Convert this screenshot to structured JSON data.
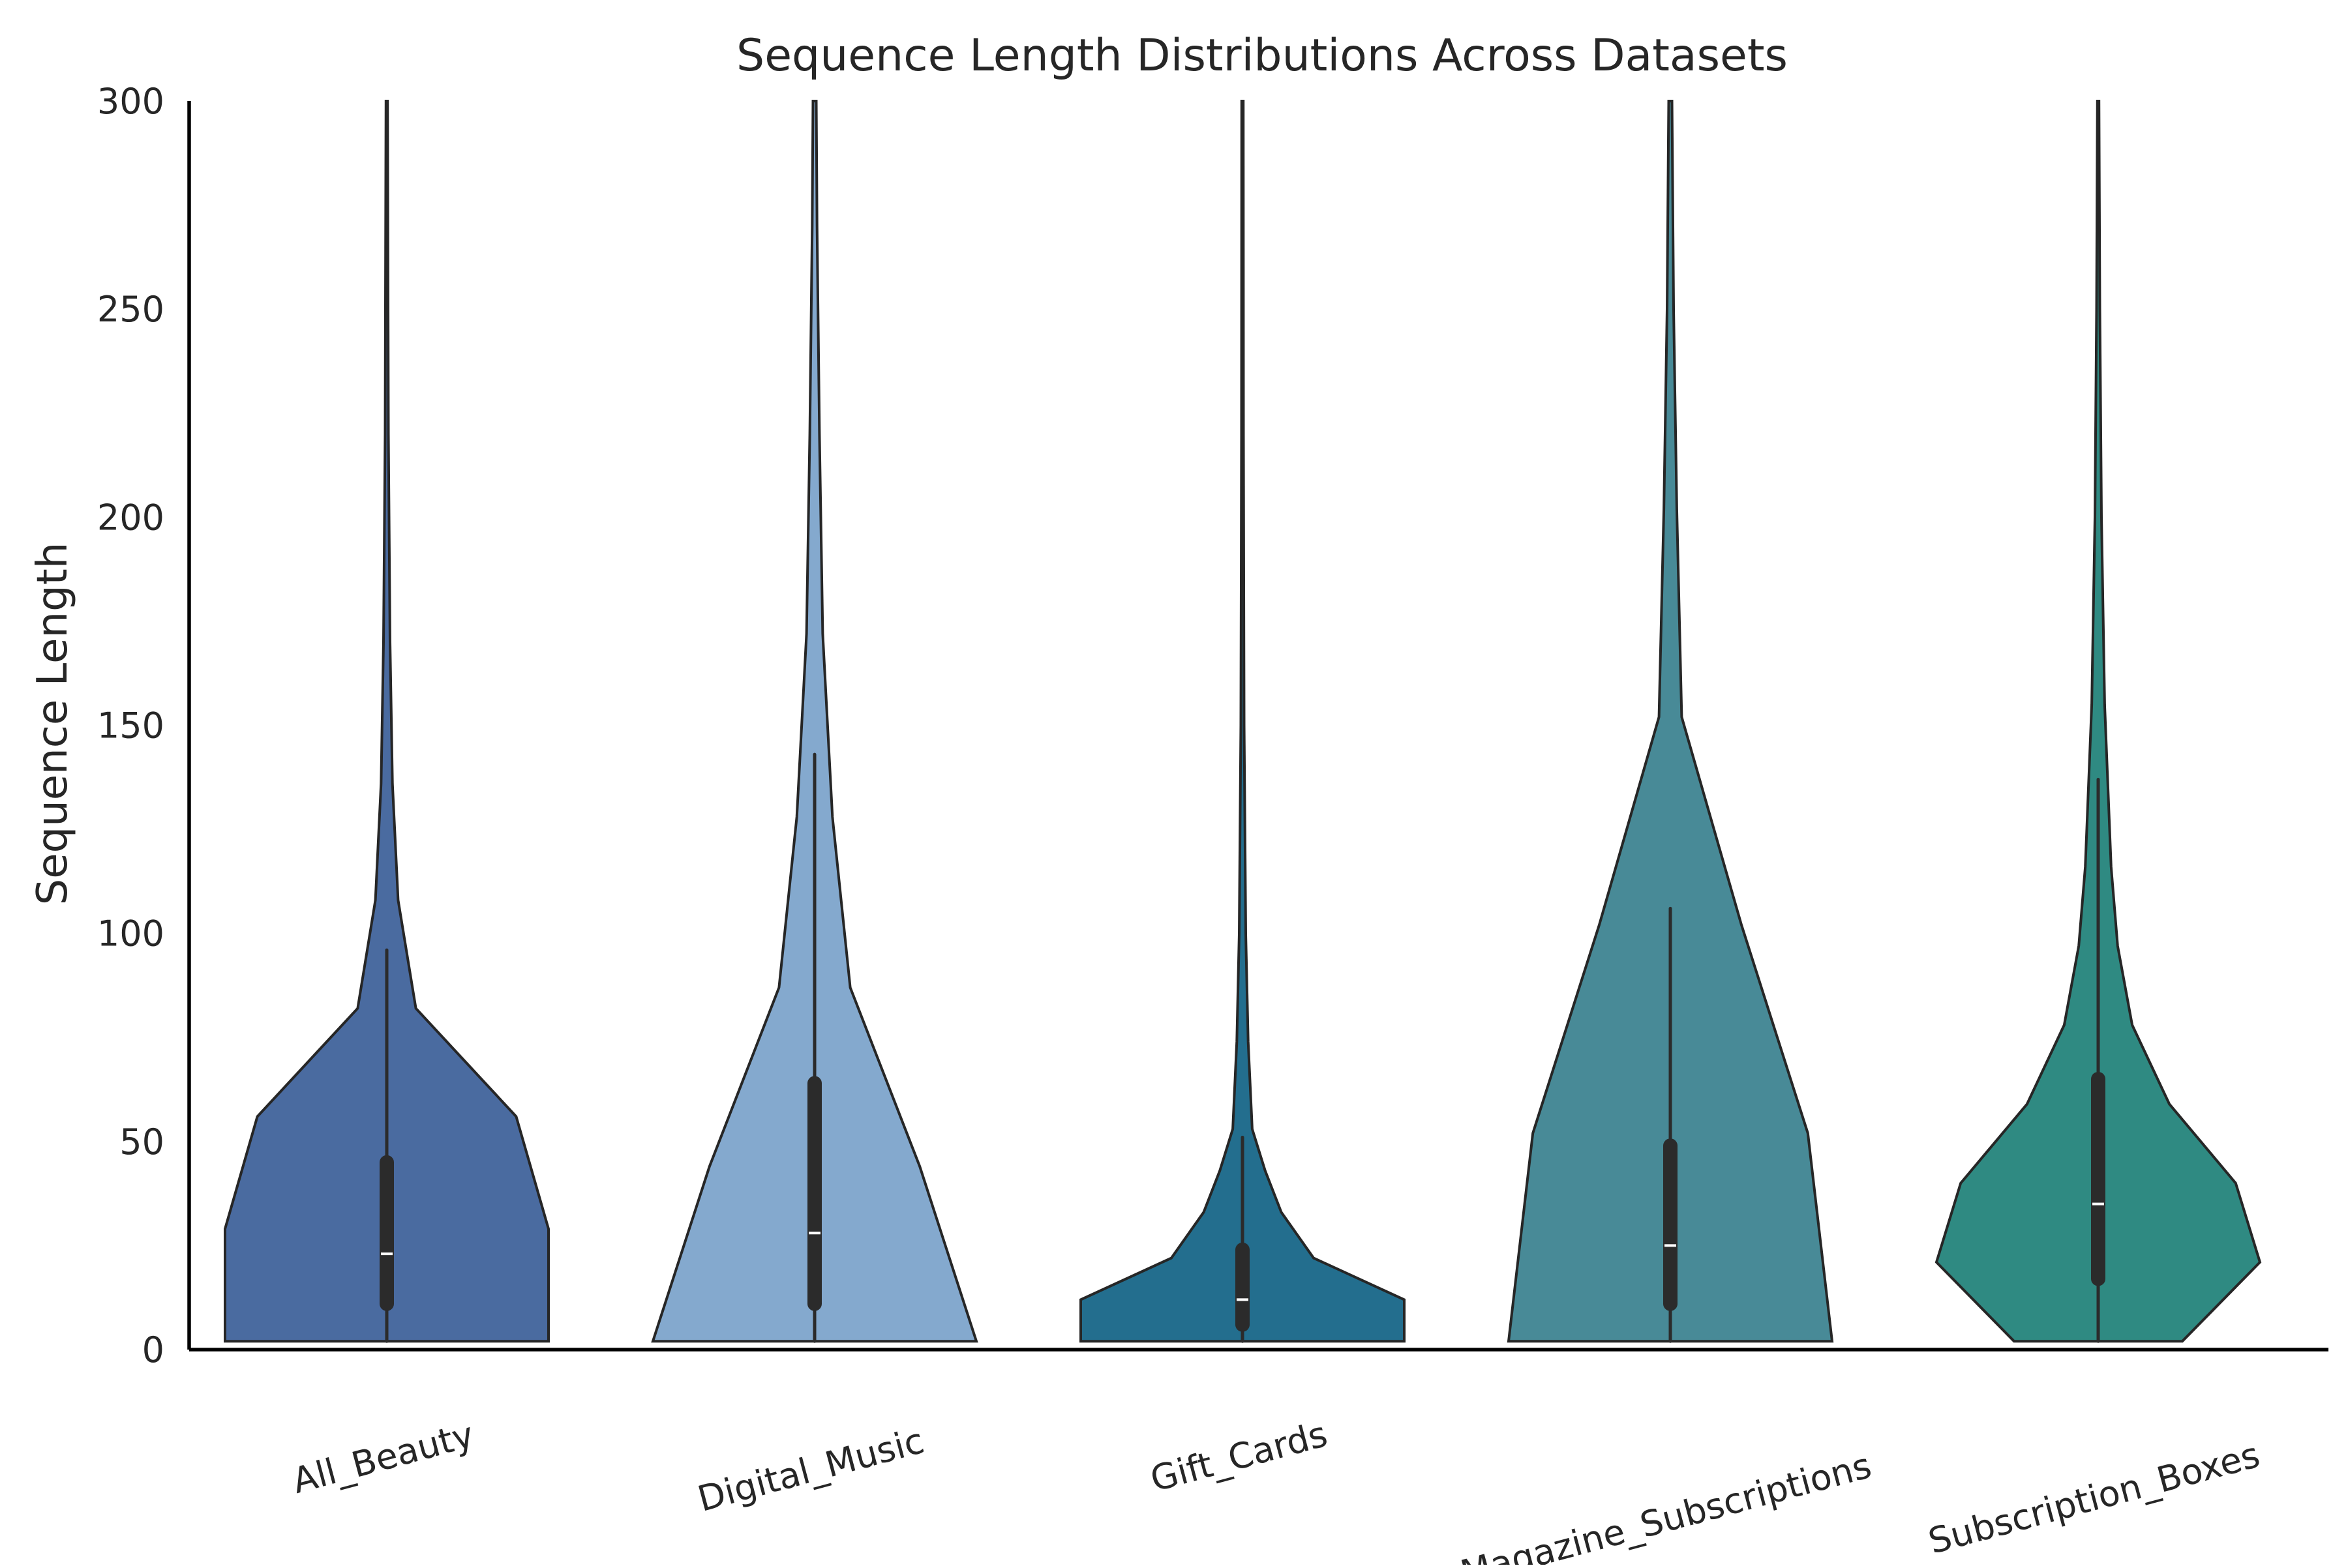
{
  "chart_data": {
    "type": "violin",
    "title": "Sequence Length Distributions Across Datasets",
    "xlabel": "",
    "ylabel": "Sequence Length",
    "ylim": [
      0,
      300
    ],
    "yticks": [
      0,
      50,
      100,
      150,
      200,
      250,
      300
    ],
    "grid": false,
    "categories": [
      "All_Beauty",
      "Digital_Music",
      "Gift_Cards",
      "Magazine_Subscriptions",
      "Subscription_Boxes"
    ],
    "colors": [
      "#4a6ba0",
      "#84a9ce",
      "#236e8e",
      "#488a97",
      "#2f8a82"
    ],
    "series": [
      {
        "category": "All_Beauty",
        "median": 23,
        "q1": 11,
        "q3": 45,
        "whisker_low": 2,
        "whisker_high": 96,
        "density": [
          [
            2,
            1.0
          ],
          [
            29,
            1.0
          ],
          [
            56,
            0.8
          ],
          [
            82,
            0.18
          ],
          [
            108,
            0.07
          ],
          [
            136,
            0.035
          ],
          [
            170,
            0.02
          ],
          [
            220,
            0.01
          ],
          [
            300,
            0.005
          ]
        ]
      },
      {
        "category": "Digital_Music",
        "median": 28,
        "q1": 11,
        "q3": 64,
        "whisker_low": 2,
        "whisker_high": 143,
        "density": [
          [
            2,
            1.0
          ],
          [
            44,
            0.65
          ],
          [
            87,
            0.22
          ],
          [
            128,
            0.11
          ],
          [
            172,
            0.05
          ],
          [
            220,
            0.03
          ],
          [
            270,
            0.015
          ],
          [
            300,
            0.01
          ]
        ]
      },
      {
        "category": "Gift_Cards",
        "median": 12,
        "q1": 6,
        "q3": 24,
        "whisker_low": 2,
        "whisker_high": 51,
        "density": [
          [
            2,
            1.0
          ],
          [
            12,
            1.0
          ],
          [
            22,
            0.44
          ],
          [
            33,
            0.24
          ],
          [
            43,
            0.14
          ],
          [
            53,
            0.06
          ],
          [
            74,
            0.035
          ],
          [
            100,
            0.02
          ],
          [
            150,
            0.01
          ],
          [
            220,
            0.006
          ],
          [
            300,
            0.005
          ]
        ]
      },
      {
        "category": "Magazine_Subscriptions",
        "median": 25,
        "q1": 11,
        "q3": 49,
        "whisker_low": 2,
        "whisker_high": 106,
        "density": [
          [
            2,
            1.0
          ],
          [
            52,
            0.85
          ],
          [
            102,
            0.44
          ],
          [
            152,
            0.07
          ],
          [
            202,
            0.04
          ],
          [
            250,
            0.02
          ],
          [
            300,
            0.01
          ]
        ]
      },
      {
        "category": "Subscription_Boxes",
        "median": 35,
        "q1": 17,
        "q3": 65,
        "whisker_low": 2,
        "whisker_high": 137,
        "density": [
          [
            2,
            0.52
          ],
          [
            21,
            1.0
          ],
          [
            40,
            0.85
          ],
          [
            59,
            0.44
          ],
          [
            78,
            0.21
          ],
          [
            97,
            0.12
          ],
          [
            116,
            0.08
          ],
          [
            155,
            0.04
          ],
          [
            200,
            0.02
          ],
          [
            250,
            0.01
          ],
          [
            300,
            0.005
          ]
        ]
      }
    ]
  }
}
